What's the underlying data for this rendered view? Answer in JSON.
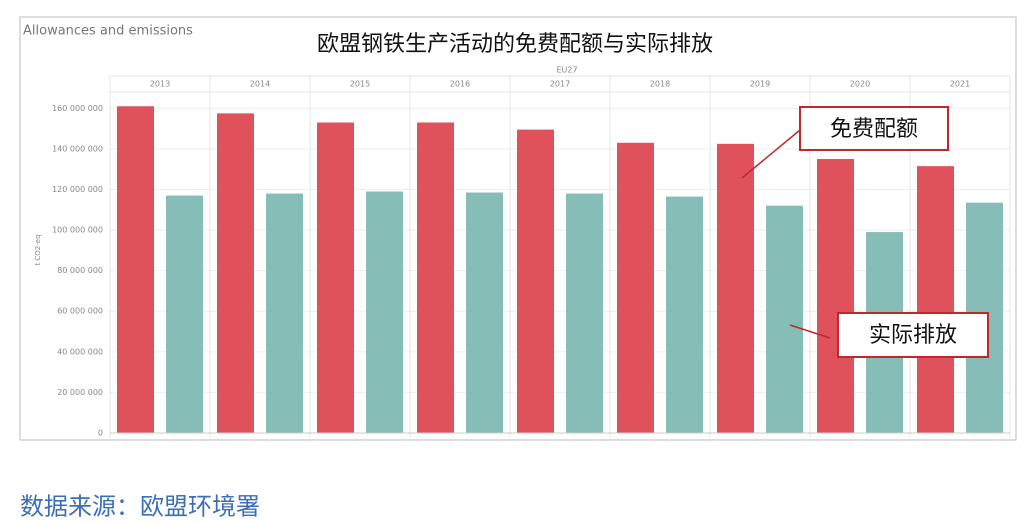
{
  "chart_data": {
    "type": "bar",
    "panel_title": "Allowances and emissions",
    "title": "欧盟钢铁生产活动的免费配额与实际排放",
    "group_label": "EU27",
    "y_label": "t CO2-eq",
    "categories": [
      "2013",
      "2014",
      "2015",
      "2016",
      "2017",
      "2018",
      "2019",
      "2020",
      "2021"
    ],
    "series": [
      {
        "name": "免费配额",
        "color": "#e0525b",
        "values": [
          161000000,
          157500000,
          153000000,
          153000000,
          149500000,
          143000000,
          142500000,
          135000000,
          131500000
        ]
      },
      {
        "name": "实际排放",
        "color": "#86bdb6",
        "values": [
          117000000,
          118000000,
          119000000,
          118500000,
          118000000,
          116500000,
          112000000,
          99000000,
          113500000
        ]
      }
    ],
    "ylim": [
      0,
      170000000
    ],
    "yticks": [
      0,
      {
        "value": 20000000,
        "label": "20 000 000"
      },
      {
        "value": 40000000,
        "label": "40 000 000"
      },
      {
        "value": 60000000,
        "label": "60 000 000"
      },
      {
        "value": 80000000,
        "label": "80 000 000"
      },
      {
        "value": 100000000,
        "label": "100 000 000"
      },
      {
        "value": 120000000,
        "label": "120 000 000"
      },
      {
        "value": 140000000,
        "label": "140 000 000"
      },
      {
        "value": 160000000,
        "label": "160 000 000"
      }
    ],
    "grid": true,
    "source": "数据来源：欧盟环境署"
  }
}
